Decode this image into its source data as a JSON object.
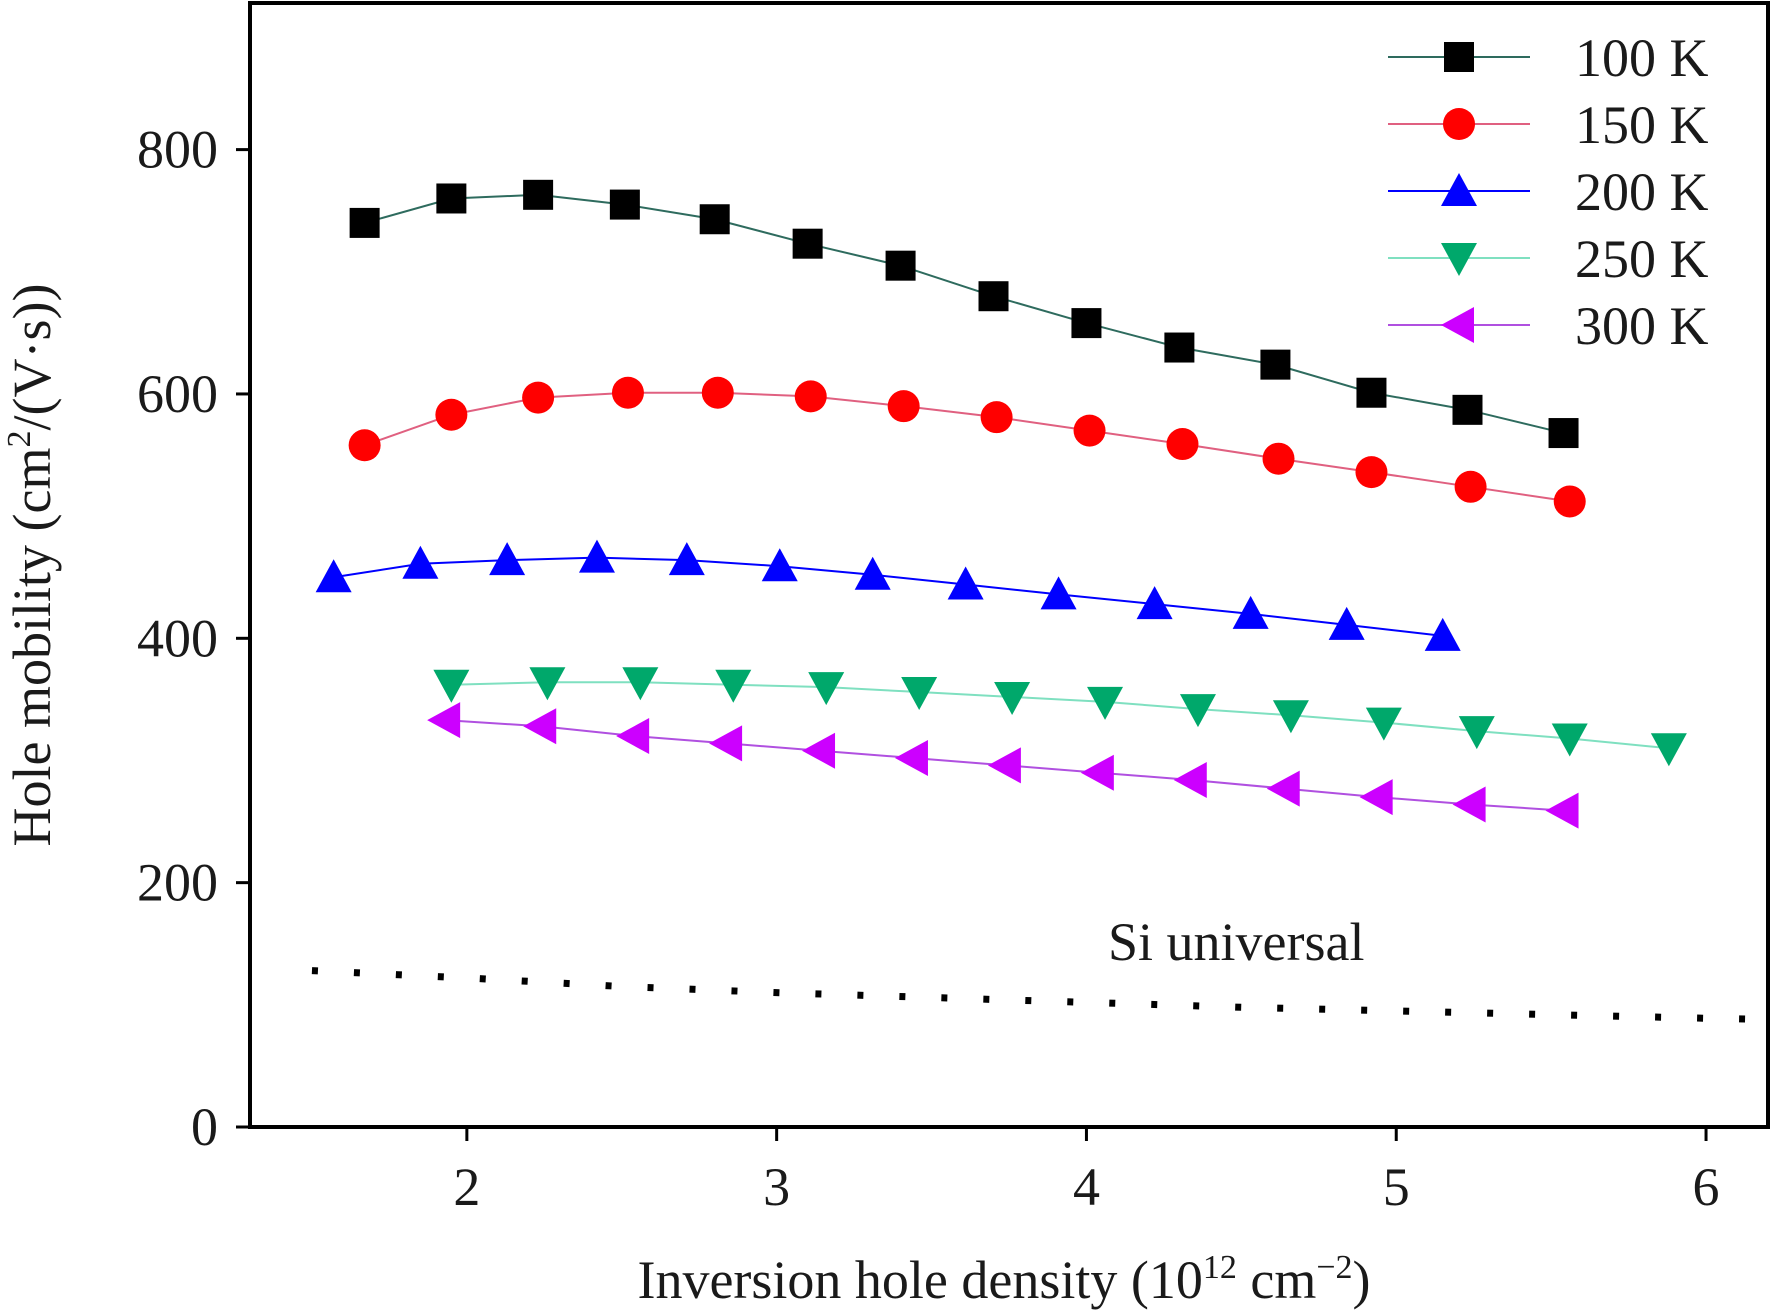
{
  "chart_data": {
    "type": "line",
    "xlabel": "Inversion hole density (10",
    "xlabel_sup": "12",
    "xlabel_unit": " cm",
    "xlabel_unit_sup": "−2",
    "xlabel_close": ")",
    "ylabel": "Hole mobility (cm",
    "ylabel_sup": "2",
    "ylabel_close": "/(V·s))",
    "xlim": [
      1.3,
      6.2
    ],
    "ylim": [
      0,
      920
    ],
    "x_ticks": [
      2,
      3,
      4,
      5,
      6
    ],
    "x_tick_labels": [
      "2",
      "3",
      "4",
      "5",
      "6"
    ],
    "y_ticks": [
      0,
      200,
      400,
      600,
      800
    ],
    "y_tick_labels": [
      "0",
      "200",
      "400",
      "600",
      "800"
    ],
    "legend_position": "top-right",
    "annotation": "Si universal",
    "series": [
      {
        "name": "100 K",
        "marker": "square",
        "color": "#000000",
        "line_color": "#2e6b5e",
        "x": [
          1.67,
          1.95,
          2.23,
          2.51,
          2.8,
          3.1,
          3.4,
          3.7,
          4.0,
          4.3,
          4.61,
          4.92,
          5.23,
          5.54
        ],
        "y": [
          740,
          760,
          763,
          755,
          743,
          723,
          705,
          680,
          658,
          638,
          624,
          601,
          587,
          568
        ]
      },
      {
        "name": "150 K",
        "marker": "circle",
        "color": "#ff0000",
        "line_color": "#e06080",
        "x": [
          1.67,
          1.95,
          2.23,
          2.52,
          2.81,
          3.11,
          3.41,
          3.71,
          4.01,
          4.31,
          4.62,
          4.92,
          5.24,
          5.56
        ],
        "y": [
          558,
          583,
          597,
          601,
          601,
          598,
          590,
          581,
          570,
          559,
          547,
          536,
          524,
          512
        ]
      },
      {
        "name": "200 K",
        "marker": "triangle-up",
        "color": "#0000ff",
        "line_color": "#0000ff",
        "x": [
          1.57,
          1.85,
          2.13,
          2.42,
          2.71,
          3.01,
          3.31,
          3.61,
          3.91,
          4.22,
          4.53,
          4.84,
          5.15
        ],
        "y": [
          450,
          461,
          464,
          466,
          464,
          459,
          452,
          444,
          436,
          428,
          420,
          411,
          402
        ]
      },
      {
        "name": "250 K",
        "marker": "triangle-down",
        "color": "#00a86b",
        "line_color": "#7fe0c0",
        "x": [
          1.95,
          2.26,
          2.56,
          2.86,
          3.16,
          3.46,
          3.76,
          4.06,
          4.36,
          4.66,
          4.96,
          5.26,
          5.56,
          5.88
        ],
        "y": [
          362,
          364,
          364,
          362,
          360,
          356,
          352,
          348,
          342,
          337,
          331,
          324,
          318,
          310
        ]
      },
      {
        "name": "300 K",
        "marker": "triangle-left",
        "color": "#cc00ff",
        "line_color": "#b050e0",
        "x": [
          1.93,
          2.24,
          2.54,
          2.84,
          3.14,
          3.44,
          3.74,
          4.04,
          4.34,
          4.64,
          4.94,
          5.24,
          5.54
        ],
        "y": [
          333,
          328,
          320,
          314,
          308,
          302,
          296,
          290,
          284,
          277,
          270,
          264,
          259
        ]
      },
      {
        "name": "Si universal",
        "marker": "none",
        "color": "#000000",
        "line_color": "#000000",
        "line_style": "dotted",
        "x": [
          1.5,
          2.0,
          2.5,
          3.0,
          3.5,
          4.0,
          4.5,
          5.0,
          5.5,
          6.0,
          6.2
        ],
        "y": [
          128,
          122,
          115,
          110,
          106,
          102,
          98,
          95,
          92,
          89,
          88
        ]
      }
    ]
  }
}
